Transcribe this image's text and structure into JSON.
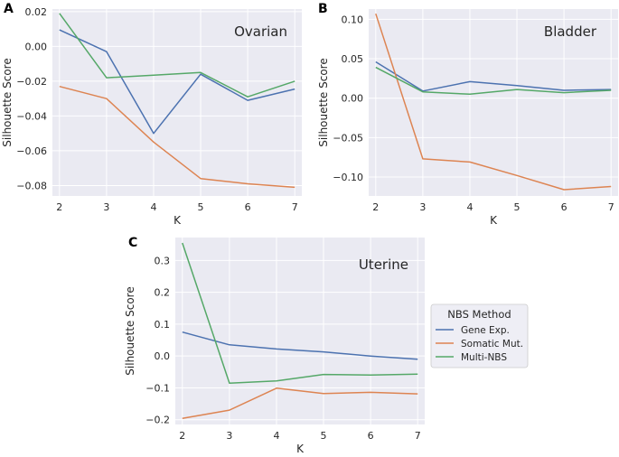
{
  "chart_data": [
    {
      "type": "line",
      "panel_label": "A",
      "title": "Ovarian",
      "xlabel": "K",
      "ylabel": "Silhouette Score",
      "x": [
        2,
        3,
        4,
        5,
        6,
        7
      ],
      "xlim": [
        1.85,
        7.15
      ],
      "ylim": [
        -0.086,
        0.0215
      ],
      "yticks": [
        0.02,
        0.0,
        -0.02,
        -0.04,
        -0.06,
        -0.08
      ],
      "ytick_labels": [
        "0.02",
        "0.00",
        "−0.02",
        "−0.04",
        "−0.06",
        "−0.08"
      ],
      "xtick_labels": [
        "2",
        "3",
        "4",
        "5",
        "6",
        "7"
      ],
      "series": [
        {
          "name": "Gene Exp.",
          "values": [
            0.0095,
            -0.003,
            -0.05,
            -0.016,
            -0.031,
            -0.0245
          ]
        },
        {
          "name": "Somatic Mut.",
          "values": [
            -0.023,
            -0.03,
            -0.055,
            -0.076,
            -0.079,
            -0.081
          ]
        },
        {
          "name": "Multi-NBS",
          "values": [
            0.019,
            -0.018,
            -0.0165,
            -0.015,
            -0.029,
            -0.02
          ]
        }
      ]
    },
    {
      "type": "line",
      "panel_label": "B",
      "title": "Bladder",
      "xlabel": "K",
      "ylabel": "Silhouette Score",
      "x": [
        2,
        3,
        4,
        5,
        6,
        7
      ],
      "xlim": [
        1.85,
        7.15
      ],
      "ylim": [
        -0.124,
        0.113
      ],
      "yticks": [
        0.1,
        0.05,
        0.0,
        -0.05,
        -0.1
      ],
      "ytick_labels": [
        "0.10",
        "0.05",
        "0.00",
        "−0.05",
        "−0.10"
      ],
      "xtick_labels": [
        "2",
        "3",
        "4",
        "5",
        "6",
        "7"
      ],
      "series": [
        {
          "name": "Gene Exp.",
          "values": [
            0.046,
            0.009,
            0.021,
            0.016,
            0.01,
            0.011
          ]
        },
        {
          "name": "Somatic Mut.",
          "values": [
            0.107,
            -0.077,
            -0.081,
            -0.098,
            -0.116,
            -0.112
          ]
        },
        {
          "name": "Multi-NBS",
          "values": [
            0.039,
            0.008,
            0.005,
            0.011,
            0.007,
            0.01
          ]
        }
      ]
    },
    {
      "type": "line",
      "panel_label": "C",
      "title": "Uterine",
      "xlabel": "K",
      "ylabel": "Silhouette Score",
      "x": [
        2,
        3,
        4,
        5,
        6,
        7
      ],
      "xlim": [
        1.85,
        7.15
      ],
      "ylim": [
        -0.215,
        0.372
      ],
      "yticks": [
        0.3,
        0.2,
        0.1,
        0.0,
        -0.1,
        -0.2
      ],
      "ytick_labels": [
        "0.3",
        "0.2",
        "0.1",
        "0.0",
        "−0.1",
        "−0.2"
      ],
      "xtick_labels": [
        "2",
        "3",
        "4",
        "5",
        "6",
        "7"
      ],
      "series": [
        {
          "name": "Gene Exp.",
          "values": [
            0.075,
            0.035,
            0.022,
            0.013,
            0.0,
            -0.01
          ]
        },
        {
          "name": "Somatic Mut.",
          "values": [
            -0.196,
            -0.17,
            -0.101,
            -0.118,
            -0.114,
            -0.119
          ]
        },
        {
          "name": "Multi-NBS",
          "values": [
            0.355,
            -0.085,
            -0.078,
            -0.058,
            -0.06,
            -0.057
          ]
        }
      ]
    }
  ],
  "legend": {
    "title": "NBS Method",
    "placement": "right of panel C",
    "entries": [
      "Gene Exp.",
      "Somatic Mut.",
      "Multi-NBS"
    ]
  },
  "colors": {
    "plot_background": "#eaeaf2",
    "grid": "#ffffff",
    "series": [
      "#4c72b0",
      "#dd8452",
      "#55a868"
    ]
  }
}
